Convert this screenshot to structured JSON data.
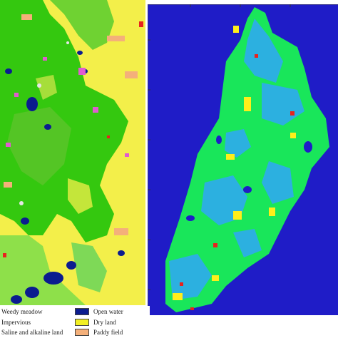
{
  "legend": {
    "items": [
      {
        "label": "Weedy meadow",
        "color": "#7ed957"
      },
      {
        "label": "Open water",
        "color": "#0b1c8f"
      },
      {
        "label": "Impervious",
        "color": "#d8d8d8"
      },
      {
        "label": "Dry land",
        "color": "#f2ef22"
      },
      {
        "label": "Saline and alkaline land",
        "color": "#c8c8c8"
      },
      {
        "label": "Paddy field",
        "color": "#f4b07a"
      }
    ]
  },
  "colors": {
    "left_background": "#f3ef4a",
    "left_vegetation": "#34c80f",
    "left_vegetation_light": "#8ee04a",
    "left_water": "#0b1c8f",
    "left_urban": "#e05bd0",
    "left_paddy": "#f4b07a",
    "right_background": "#1f1cc7",
    "right_main": "#19e65a",
    "right_secondary": "#2cb0e0",
    "right_yellow": "#ffee1a",
    "right_red": "#e8221e"
  }
}
